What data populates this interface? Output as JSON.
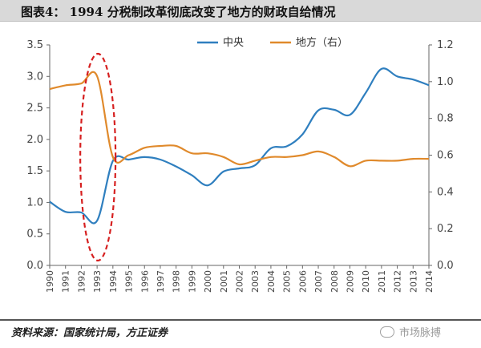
{
  "header": {
    "title": "图表4：  1994 分税制改革彻底改变了地方的财政自给情况"
  },
  "footer": {
    "source": "资料来源：国家统计局，方正证券",
    "watermark": "市场脉搏"
  },
  "chart_data": {
    "type": "line",
    "title": "1994 分税制改革彻底改变了地方的财政自给情况",
    "categories": [
      "1990",
      "1991",
      "1992",
      "1993",
      "1994",
      "1995",
      "1996",
      "1997",
      "1998",
      "1999",
      "2000",
      "2001",
      "2002",
      "2003",
      "2004",
      "2005",
      "2006",
      "2007",
      "2008",
      "2009",
      "2010",
      "2011",
      "2012",
      "2013",
      "2014"
    ],
    "left_axis": {
      "min": 0.0,
      "max": 3.5,
      "ticks": [
        "0.0",
        "0.5",
        "1.0",
        "1.5",
        "2.0",
        "2.5",
        "3.0",
        "3.5"
      ]
    },
    "right_axis": {
      "min": 0.0,
      "max": 1.2,
      "ticks": [
        "0.0",
        "0.2",
        "0.4",
        "0.6",
        "0.8",
        "1.0",
        "1.2"
      ]
    },
    "series": [
      {
        "name": "中央",
        "axis": "left",
        "color": "#2f7fbf",
        "values": [
          1.01,
          0.85,
          0.84,
          0.71,
          1.66,
          1.68,
          1.72,
          1.68,
          1.57,
          1.43,
          1.27,
          1.49,
          1.54,
          1.59,
          1.86,
          1.89,
          2.08,
          2.46,
          2.47,
          2.39,
          2.74,
          3.12,
          3.0,
          2.95,
          2.86
        ]
      },
      {
        "name": "地方（右）",
        "axis": "right",
        "color": "#e08a2c",
        "values": [
          0.96,
          0.98,
          0.99,
          1.03,
          0.59,
          0.6,
          0.64,
          0.65,
          0.65,
          0.61,
          0.61,
          0.59,
          0.55,
          0.57,
          0.59,
          0.59,
          0.6,
          0.62,
          0.59,
          0.54,
          0.57,
          0.57,
          0.57,
          0.58,
          0.58
        ]
      }
    ],
    "annotations": [
      {
        "type": "dashed-ellipse",
        "color": "#d62020",
        "around": "1993"
      }
    ]
  }
}
